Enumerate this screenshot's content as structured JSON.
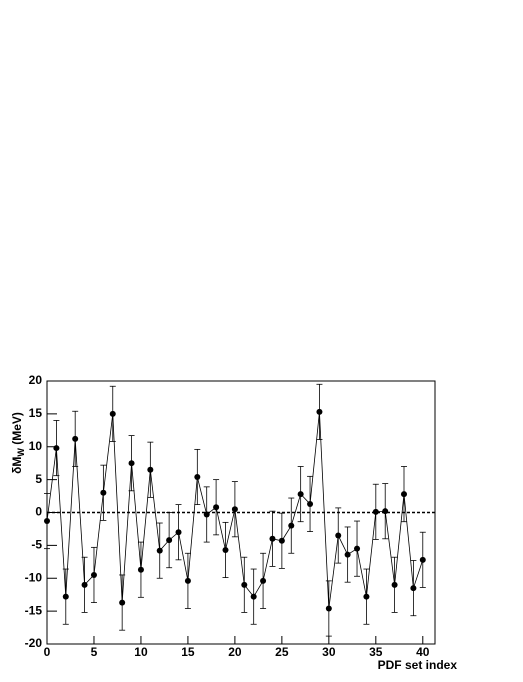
{
  "chart_data": {
    "type": "errorline",
    "x_label": "PDF set index",
    "y_label_parts": [
      "δM",
      "W",
      " (MeV)"
    ],
    "x": [
      0,
      1,
      2,
      3,
      4,
      5,
      6,
      7,
      8,
      9,
      10,
      11,
      12,
      13,
      14,
      15,
      16,
      17,
      18,
      19,
      20,
      21,
      22,
      23,
      24,
      25,
      26,
      27,
      28,
      29,
      30,
      31,
      32,
      33,
      34,
      35,
      36,
      37,
      38,
      39,
      40
    ],
    "values": [
      -1.3,
      9.8,
      -12.8,
      11.2,
      -11,
      -9.5,
      3,
      15,
      -13.7,
      7.5,
      -8.7,
      6.5,
      -5.8,
      -4.2,
      -3,
      -10.4,
      5.4,
      -0.3,
      0.8,
      -5.7,
      0.5,
      -11,
      -12.8,
      -10.4,
      -4,
      -4.3,
      -2,
      2.8,
      1.3,
      15.3,
      -14.6,
      -3.5,
      -6.4,
      -5.5,
      -12.8,
      0.1,
      0.2,
      -11,
      2.8,
      -11.5,
      -7.2
    ],
    "errors": [
      4.2,
      4.2,
      4.2,
      4.2,
      4.2,
      4.2,
      4.2,
      4.2,
      4.2,
      4.2,
      4.2,
      4.2,
      4.2,
      4.2,
      4.2,
      4.2,
      4.2,
      4.2,
      4.2,
      4.2,
      4.2,
      4.2,
      4.2,
      4.2,
      4.2,
      4.2,
      4.2,
      4.2,
      4.2,
      4.2,
      4.2,
      4.2,
      4.2,
      4.2,
      4.2,
      4.2,
      4.2,
      4.2,
      4.2,
      4.2,
      4.2
    ],
    "color": "#000000",
    "xlim": [
      0,
      41.3
    ],
    "xticks": [
      0,
      5,
      10,
      15,
      20,
      25,
      30,
      35,
      40
    ],
    "ylim": [
      -20,
      20
    ],
    "yticks": [
      -20,
      -15,
      -10,
      -5,
      0,
      5,
      10,
      15,
      20
    ],
    "hline": 0
  }
}
